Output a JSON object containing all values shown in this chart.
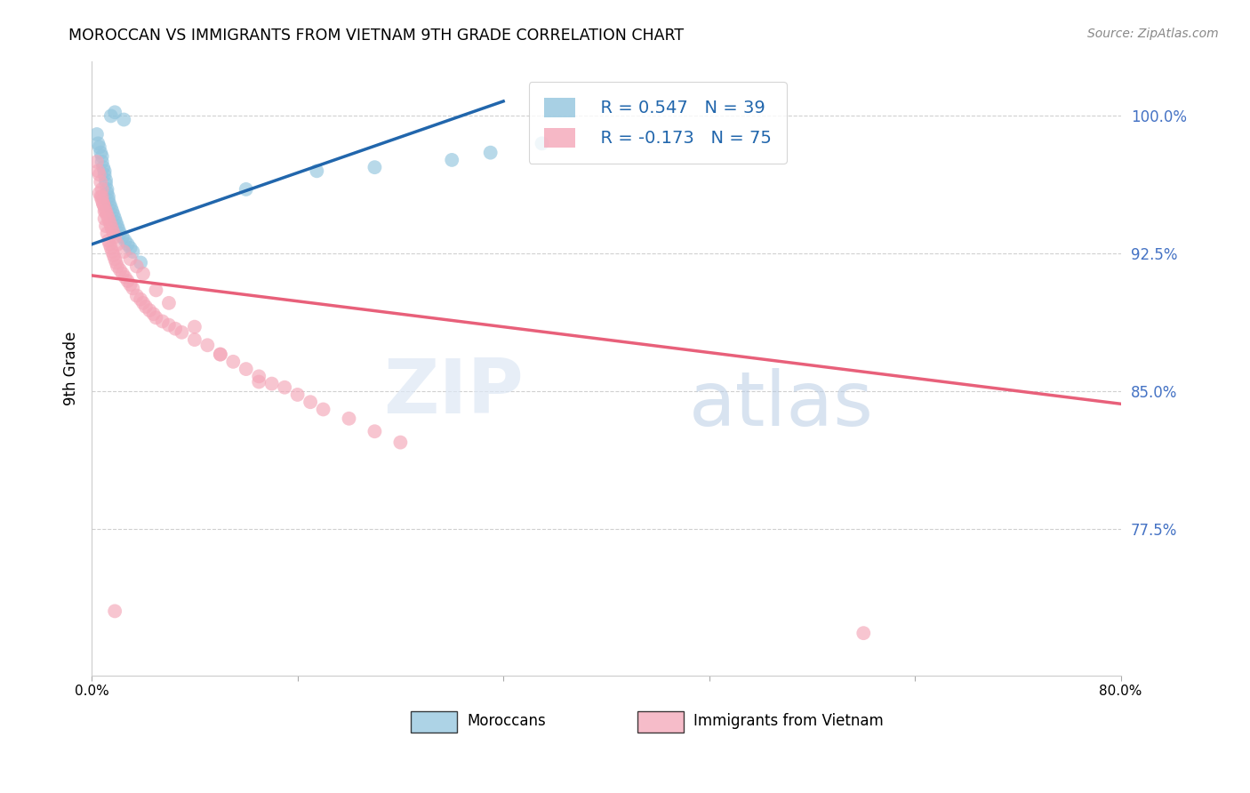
{
  "title": "MOROCCAN VS IMMIGRANTS FROM VIETNAM 9TH GRADE CORRELATION CHART",
  "source": "Source: ZipAtlas.com",
  "ylabel": "9th Grade",
  "xlim": [
    0.0,
    0.8
  ],
  "ylim": [
    0.695,
    1.03
  ],
  "legend_blue_r": "R = 0.547",
  "legend_blue_n": "N = 39",
  "legend_pink_r": "R = -0.173",
  "legend_pink_n": "N = 75",
  "blue_color": "#92c5de",
  "blue_line_color": "#2166ac",
  "pink_color": "#f4a6b8",
  "pink_line_color": "#e8607a",
  "watermark_zip": "ZIP",
  "watermark_atlas": "atlas",
  "ytick_values": [
    1.0,
    0.925,
    0.85,
    0.775
  ],
  "ytick_labels": [
    "100.0%",
    "92.5%",
    "85.0%",
    "77.5%"
  ],
  "xtick_values": [
    0.0,
    0.16,
    0.32,
    0.48,
    0.64,
    0.8
  ],
  "xtick_labels": [
    "0.0%",
    "",
    "",
    "",
    "",
    "80.0%"
  ],
  "blue_scatter_x": [
    0.004,
    0.005,
    0.006,
    0.007,
    0.008,
    0.008,
    0.009,
    0.01,
    0.01,
    0.011,
    0.011,
    0.012,
    0.012,
    0.013,
    0.013,
    0.014,
    0.015,
    0.016,
    0.017,
    0.018,
    0.019,
    0.02,
    0.021,
    0.022,
    0.024,
    0.026,
    0.028,
    0.03,
    0.032,
    0.038,
    0.12,
    0.175,
    0.22,
    0.28,
    0.31,
    0.35,
    0.015,
    0.018,
    0.025
  ],
  "blue_scatter_y": [
    0.99,
    0.985,
    0.983,
    0.98,
    0.978,
    0.975,
    0.972,
    0.97,
    0.968,
    0.965,
    0.963,
    0.96,
    0.958,
    0.956,
    0.954,
    0.952,
    0.95,
    0.948,
    0.946,
    0.944,
    0.942,
    0.94,
    0.938,
    0.936,
    0.934,
    0.932,
    0.93,
    0.928,
    0.926,
    0.92,
    0.96,
    0.97,
    0.972,
    0.976,
    0.98,
    0.985,
    1.0,
    1.002,
    0.998
  ],
  "pink_scatter_x": [
    0.004,
    0.005,
    0.006,
    0.007,
    0.008,
    0.008,
    0.009,
    0.01,
    0.01,
    0.011,
    0.012,
    0.013,
    0.014,
    0.015,
    0.016,
    0.017,
    0.018,
    0.019,
    0.02,
    0.022,
    0.024,
    0.026,
    0.028,
    0.03,
    0.032,
    0.035,
    0.038,
    0.04,
    0.042,
    0.045,
    0.048,
    0.05,
    0.055,
    0.06,
    0.065,
    0.07,
    0.08,
    0.09,
    0.1,
    0.11,
    0.12,
    0.13,
    0.14,
    0.15,
    0.16,
    0.17,
    0.18,
    0.2,
    0.22,
    0.24,
    0.006,
    0.007,
    0.008,
    0.009,
    0.01,
    0.011,
    0.012,
    0.013,
    0.014,
    0.015,
    0.016,
    0.017,
    0.018,
    0.02,
    0.025,
    0.03,
    0.035,
    0.04,
    0.05,
    0.06,
    0.08,
    0.1,
    0.13,
    0.6,
    0.018
  ],
  "pink_scatter_y": [
    0.975,
    0.97,
    0.968,
    0.964,
    0.96,
    0.956,
    0.952,
    0.948,
    0.944,
    0.94,
    0.936,
    0.932,
    0.93,
    0.928,
    0.926,
    0.924,
    0.922,
    0.92,
    0.918,
    0.916,
    0.914,
    0.912,
    0.91,
    0.908,
    0.906,
    0.902,
    0.9,
    0.898,
    0.896,
    0.894,
    0.892,
    0.89,
    0.888,
    0.886,
    0.884,
    0.882,
    0.878,
    0.875,
    0.87,
    0.866,
    0.862,
    0.858,
    0.854,
    0.852,
    0.848,
    0.844,
    0.84,
    0.835,
    0.828,
    0.822,
    0.958,
    0.956,
    0.954,
    0.952,
    0.95,
    0.948,
    0.946,
    0.944,
    0.942,
    0.94,
    0.938,
    0.936,
    0.934,
    0.93,
    0.926,
    0.922,
    0.918,
    0.914,
    0.905,
    0.898,
    0.885,
    0.87,
    0.855,
    0.718,
    0.73
  ],
  "blue_line_x": [
    0.0,
    0.32
  ],
  "blue_line_y": [
    0.93,
    1.008
  ],
  "pink_line_x": [
    0.0,
    0.8
  ],
  "pink_line_y": [
    0.913,
    0.843
  ],
  "grid_color": "#d0d0d0",
  "background_color": "#ffffff"
}
